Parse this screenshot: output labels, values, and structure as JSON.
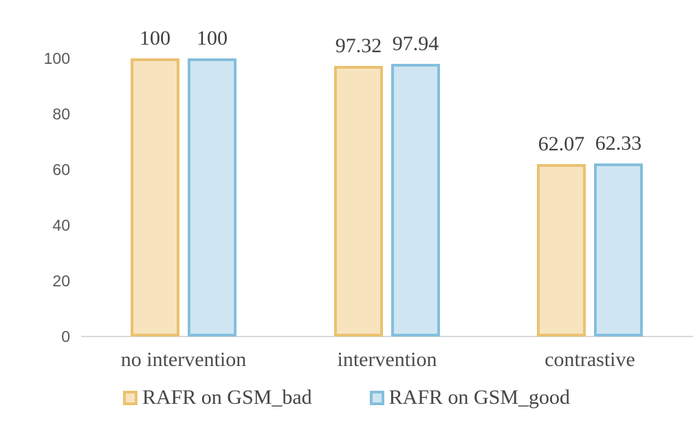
{
  "chart_data": {
    "type": "bar",
    "title": "",
    "xlabel": "",
    "ylabel": "",
    "categories": [
      "no intervention",
      "intervention",
      "contrastive"
    ],
    "series": [
      {
        "name": "RAFR on GSM_bad",
        "values": [
          100,
          97.32,
          62.07
        ],
        "data_labels": [
          "100",
          "97.32",
          "62.07"
        ],
        "fill_color": "#f7e4bf",
        "border_color": "#ebc170"
      },
      {
        "name": "RAFR on GSM_good",
        "values": [
          100,
          97.94,
          62.33
        ],
        "data_labels": [
          "100",
          "97.94",
          "62.33"
        ],
        "fill_color": "#cfe6f2",
        "border_color": "#85bedd"
      }
    ],
    "y_ticks": [
      "100",
      "80",
      "60",
      "40",
      "20",
      "0"
    ],
    "y_tick_values": [
      100,
      80,
      60,
      40,
      20,
      0
    ],
    "ylim": [
      0,
      100
    ],
    "grid": false,
    "legend_position": "bottom",
    "axis_line_color": "#d9d9d9",
    "tick_label_color": "#595959",
    "data_label_color": "#3d4043",
    "category_label_color": "#4c4c4c",
    "background_color": "#ffffff"
  }
}
